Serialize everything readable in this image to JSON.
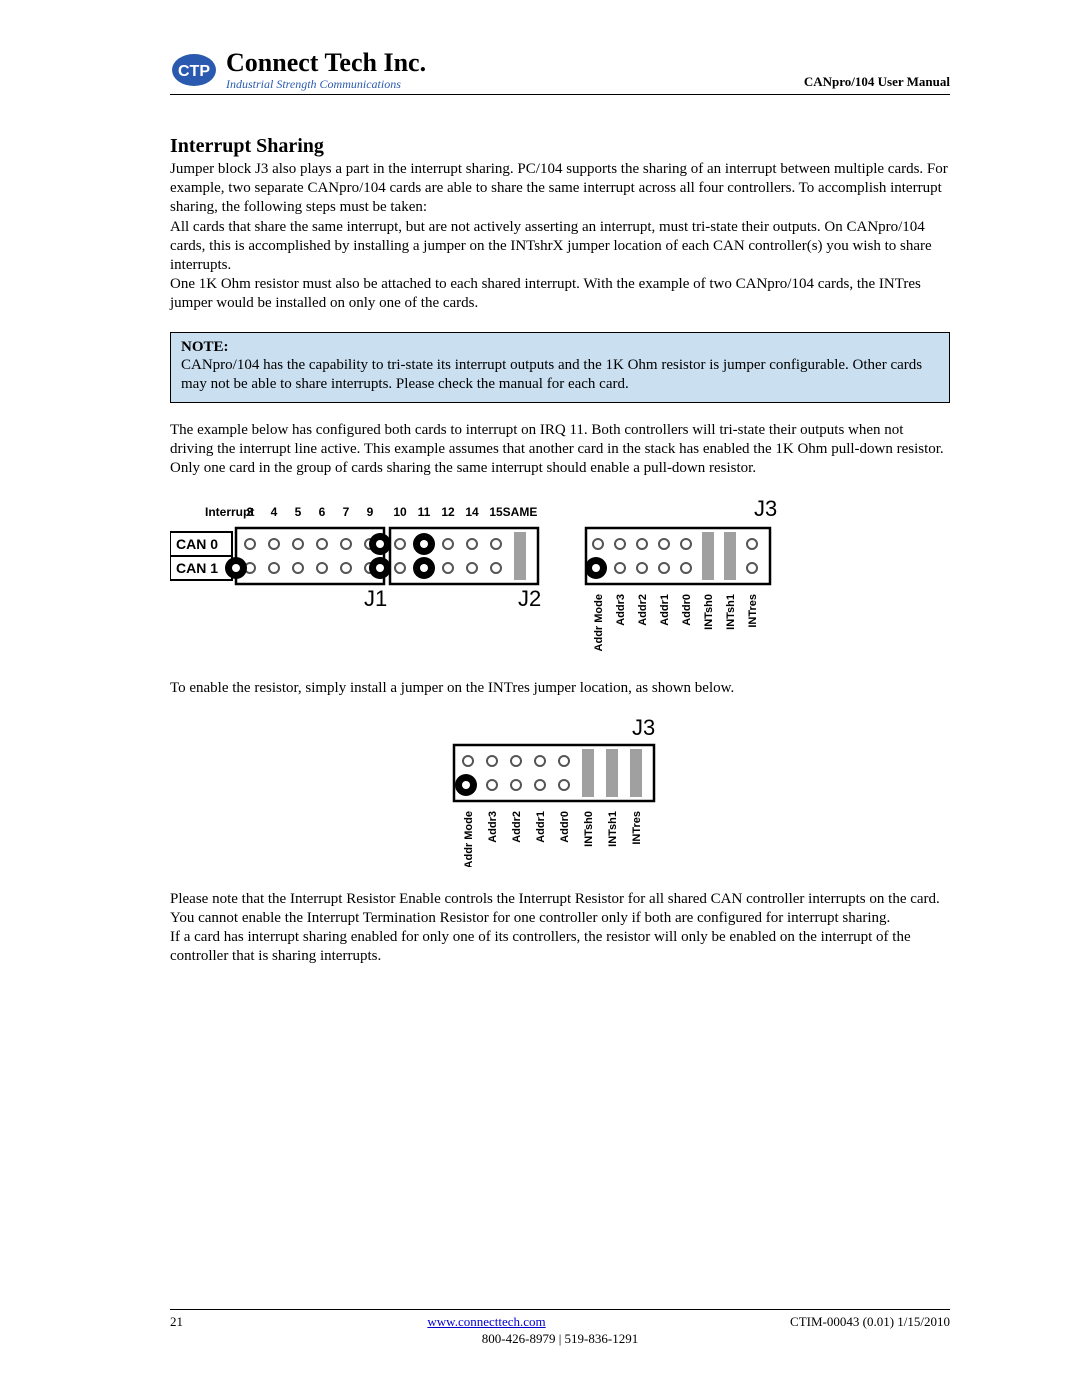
{
  "header": {
    "company_name": "Connect Tech Inc.",
    "company_tag": "Industrial Strength Communications",
    "manual_title": "CANpro/104 User Manual",
    "logo_colors": {
      "blue": "#2a5aaf",
      "white": "#ffffff"
    }
  },
  "section": {
    "title": "Interrupt Sharing",
    "p1": "Jumper block J3 also plays a part in the interrupt sharing.  PC/104 supports the sharing of an interrupt between multiple cards.  For example, two separate CANpro/104 cards are able to share the same interrupt across all four controllers.  To accomplish interrupt sharing, the following steps must be taken:",
    "p2": "All cards that share the same interrupt, but are not actively asserting an interrupt, must tri-state their outputs.  On CANpro/104 cards, this is accomplished by installing a jumper on the INTshrX jumper location of each CAN controller(s) you wish to share interrupts.",
    "p3": "One 1K Ohm resistor must also be attached to each shared interrupt.  With the example of two CANpro/104 cards, the INTres jumper would be installed on only one of the cards."
  },
  "note": {
    "label": "NOTE:",
    "text": "CANpro/104 has the capability to tri-state its interrupt outputs and the 1K Ohm resistor is jumper configurable.  Other cards may not be able to share interrupts.  Please check the manual for each card."
  },
  "after_note": {
    "p1": "The example below has configured both cards to interrupt on IRQ 11.  Both controllers will tri-state their outputs when not driving the interrupt line active. This example assumes that another card in the stack has enabled the 1K Ohm pull-down resistor. Only one card in the group of cards sharing the same interrupt should enable a pull-down resistor."
  },
  "diagram1": {
    "interrupt_label": "Interrupt",
    "irq_labels": [
      "3",
      "4",
      "5",
      "6",
      "7",
      "9",
      "10",
      "11",
      "12",
      "14",
      "15",
      "SAME"
    ],
    "row_labels": [
      "CAN 0",
      "CAN 1"
    ],
    "block_labels": {
      "j1": "J1",
      "j2": "J2",
      "j3": "J3"
    },
    "j3_labels": [
      "Addr Mode",
      "Addr3",
      "Addr2",
      "Addr1",
      "Addr0",
      "INTsh0",
      "INTsh1",
      "INTres"
    ],
    "colors": {
      "stroke": "#000000",
      "fill_open": "#ffffff",
      "jumper_fill": "#a0a0a0",
      "hole_stroke": "#555555"
    },
    "j1_columns": 6,
    "j2_columns": 6,
    "jumpers_j2_col11": true,
    "j3_jumpers_cols": [
      5,
      6
    ]
  },
  "mid_text": {
    "p1": "To enable the resistor, simply install a jumper on the INTres jumper location, as shown below."
  },
  "diagram2": {
    "block_label": "J3",
    "labels": [
      "Addr Mode",
      "Addr3",
      "Addr2",
      "Addr1",
      "Addr0",
      "INTsh0",
      "INTsh1",
      "INTres"
    ],
    "jumpers_cols": [
      5,
      6,
      7
    ],
    "colors": {
      "stroke": "#000000",
      "jumper_fill": "#a0a0a0",
      "hole_stroke": "#555555"
    }
  },
  "closing": {
    "p1": "Please note that the Interrupt Resistor Enable controls the Interrupt Resistor for all shared CAN controller interrupts on the card. You cannot enable the Interrupt Termination Resistor for one controller only if both are configured for interrupt sharing.",
    "p2": "If a card has interrupt sharing enabled for only one of its controllers, the resistor will only be enabled on the interrupt of the controller that is sharing interrupts."
  },
  "footer": {
    "page_number": "21",
    "url": "www.connecttech.com",
    "doc_id": "CTIM-00043 (0.01) 1/15/2010",
    "phones": "800-426-8979 | 519-836-1291"
  }
}
